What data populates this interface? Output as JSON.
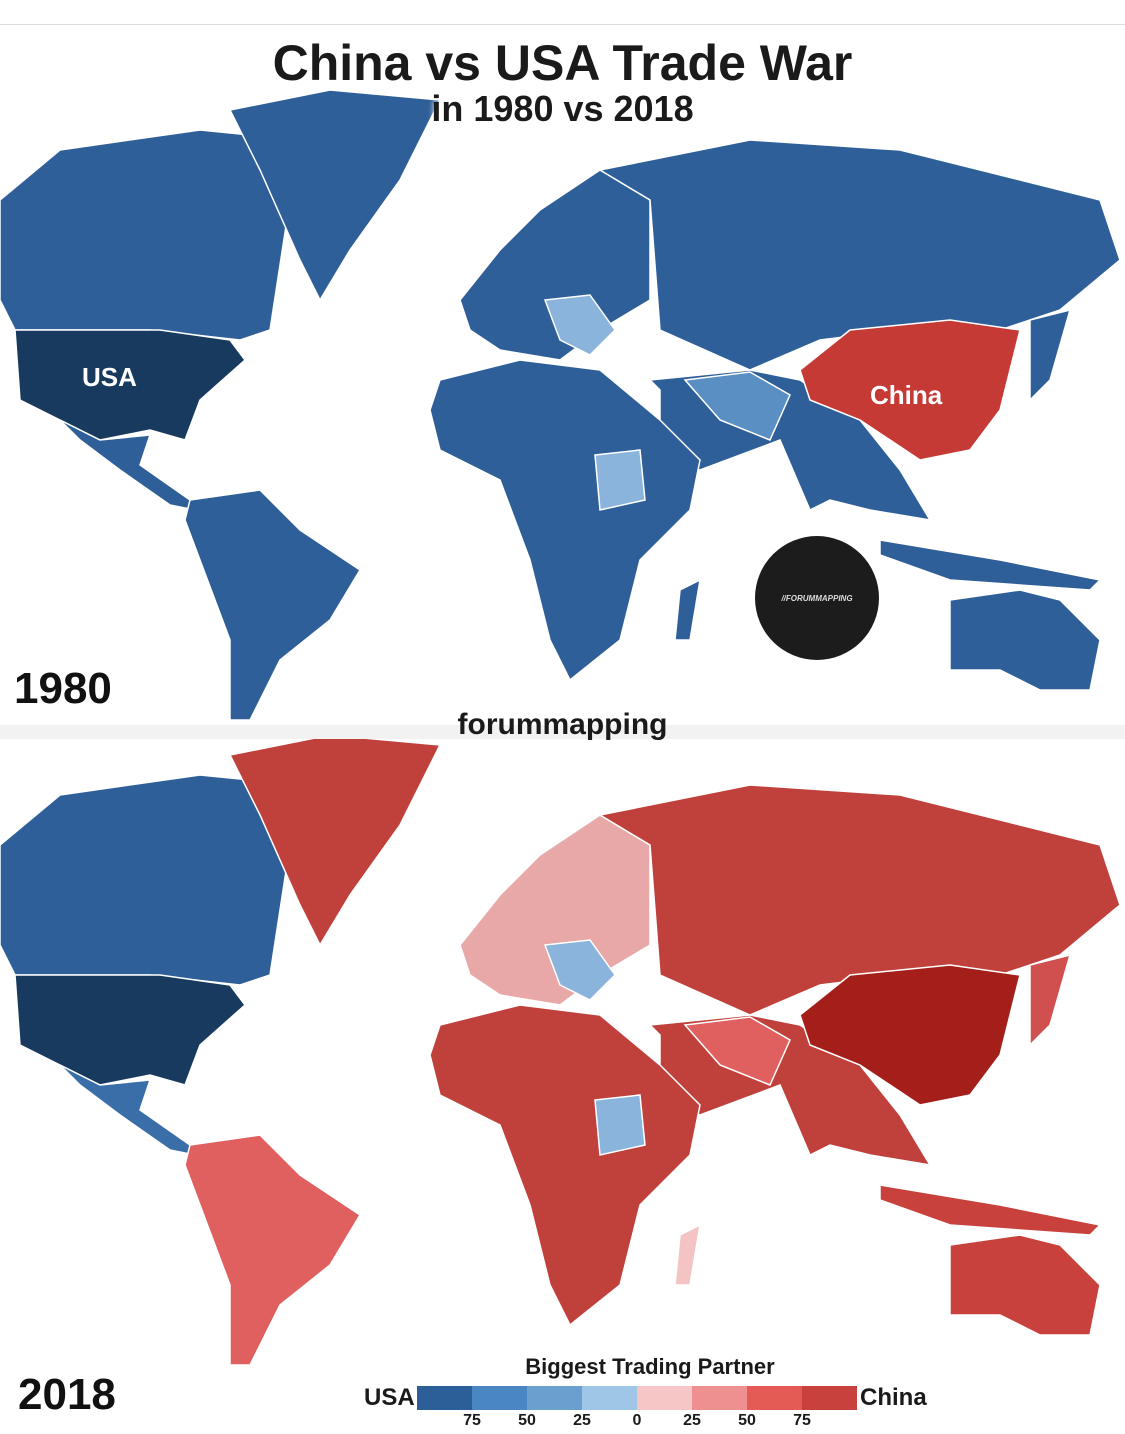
{
  "title": "China vs USA Trade War",
  "subtitle": "in 1980 vs 2018",
  "watermark": "forummapping",
  "logo_text": "//FORUMMAPPING",
  "maps": [
    {
      "year": "1980",
      "labels": {
        "usa": "USA",
        "china": "China"
      },
      "colors": {
        "canada": "#2f5f99",
        "usa": "#173a5e",
        "mexico": "#2f5f99",
        "south_america": "#2f5f99",
        "greenland": "#2f5f99",
        "europe": "#2f5f99",
        "eastern_europe": "#8ab4dc",
        "russia": "#2f5f99",
        "china": "#c63a35",
        "middle_east_asia": "#2f5f99",
        "iran_pakistan": "#5a8fc4",
        "africa": "#2f5f99",
        "sudan": "#8ab4dc",
        "australia": "#2f5f99",
        "indonesia": "#2f5f99",
        "japan": "#2f5f99",
        "madagascar": "#2f5f99"
      }
    },
    {
      "year": "2018",
      "colors": {
        "canada": "#2f5f99",
        "usa": "#173a5e",
        "mexico": "#3a6ea8",
        "south_america": "#e06060",
        "greenland": "#c0413c",
        "europe": "#e8a8a8",
        "eastern_europe": "#8ab4dc",
        "russia": "#c0413c",
        "china": "#a51f1a",
        "middle_east_asia": "#c0413c",
        "iran_pakistan": "#e06060",
        "africa": "#c0413c",
        "sudan": "#8ab4dc",
        "australia": "#c8413c",
        "indonesia": "#c8413c",
        "japan": "#d05050",
        "madagascar": "#f4c4c4"
      }
    }
  ],
  "legend": {
    "title": "Biggest Trading Partner",
    "left_label": "USA",
    "right_label": "China",
    "colors": [
      "#2c5f98",
      "#4a86c2",
      "#6b9fd0",
      "#9fc6e6",
      "#f6c6c6",
      "#ee9090",
      "#e45a55",
      "#c8413c"
    ],
    "ticks": [
      "75",
      "50",
      "25",
      "0",
      "25",
      "50",
      "75"
    ]
  }
}
